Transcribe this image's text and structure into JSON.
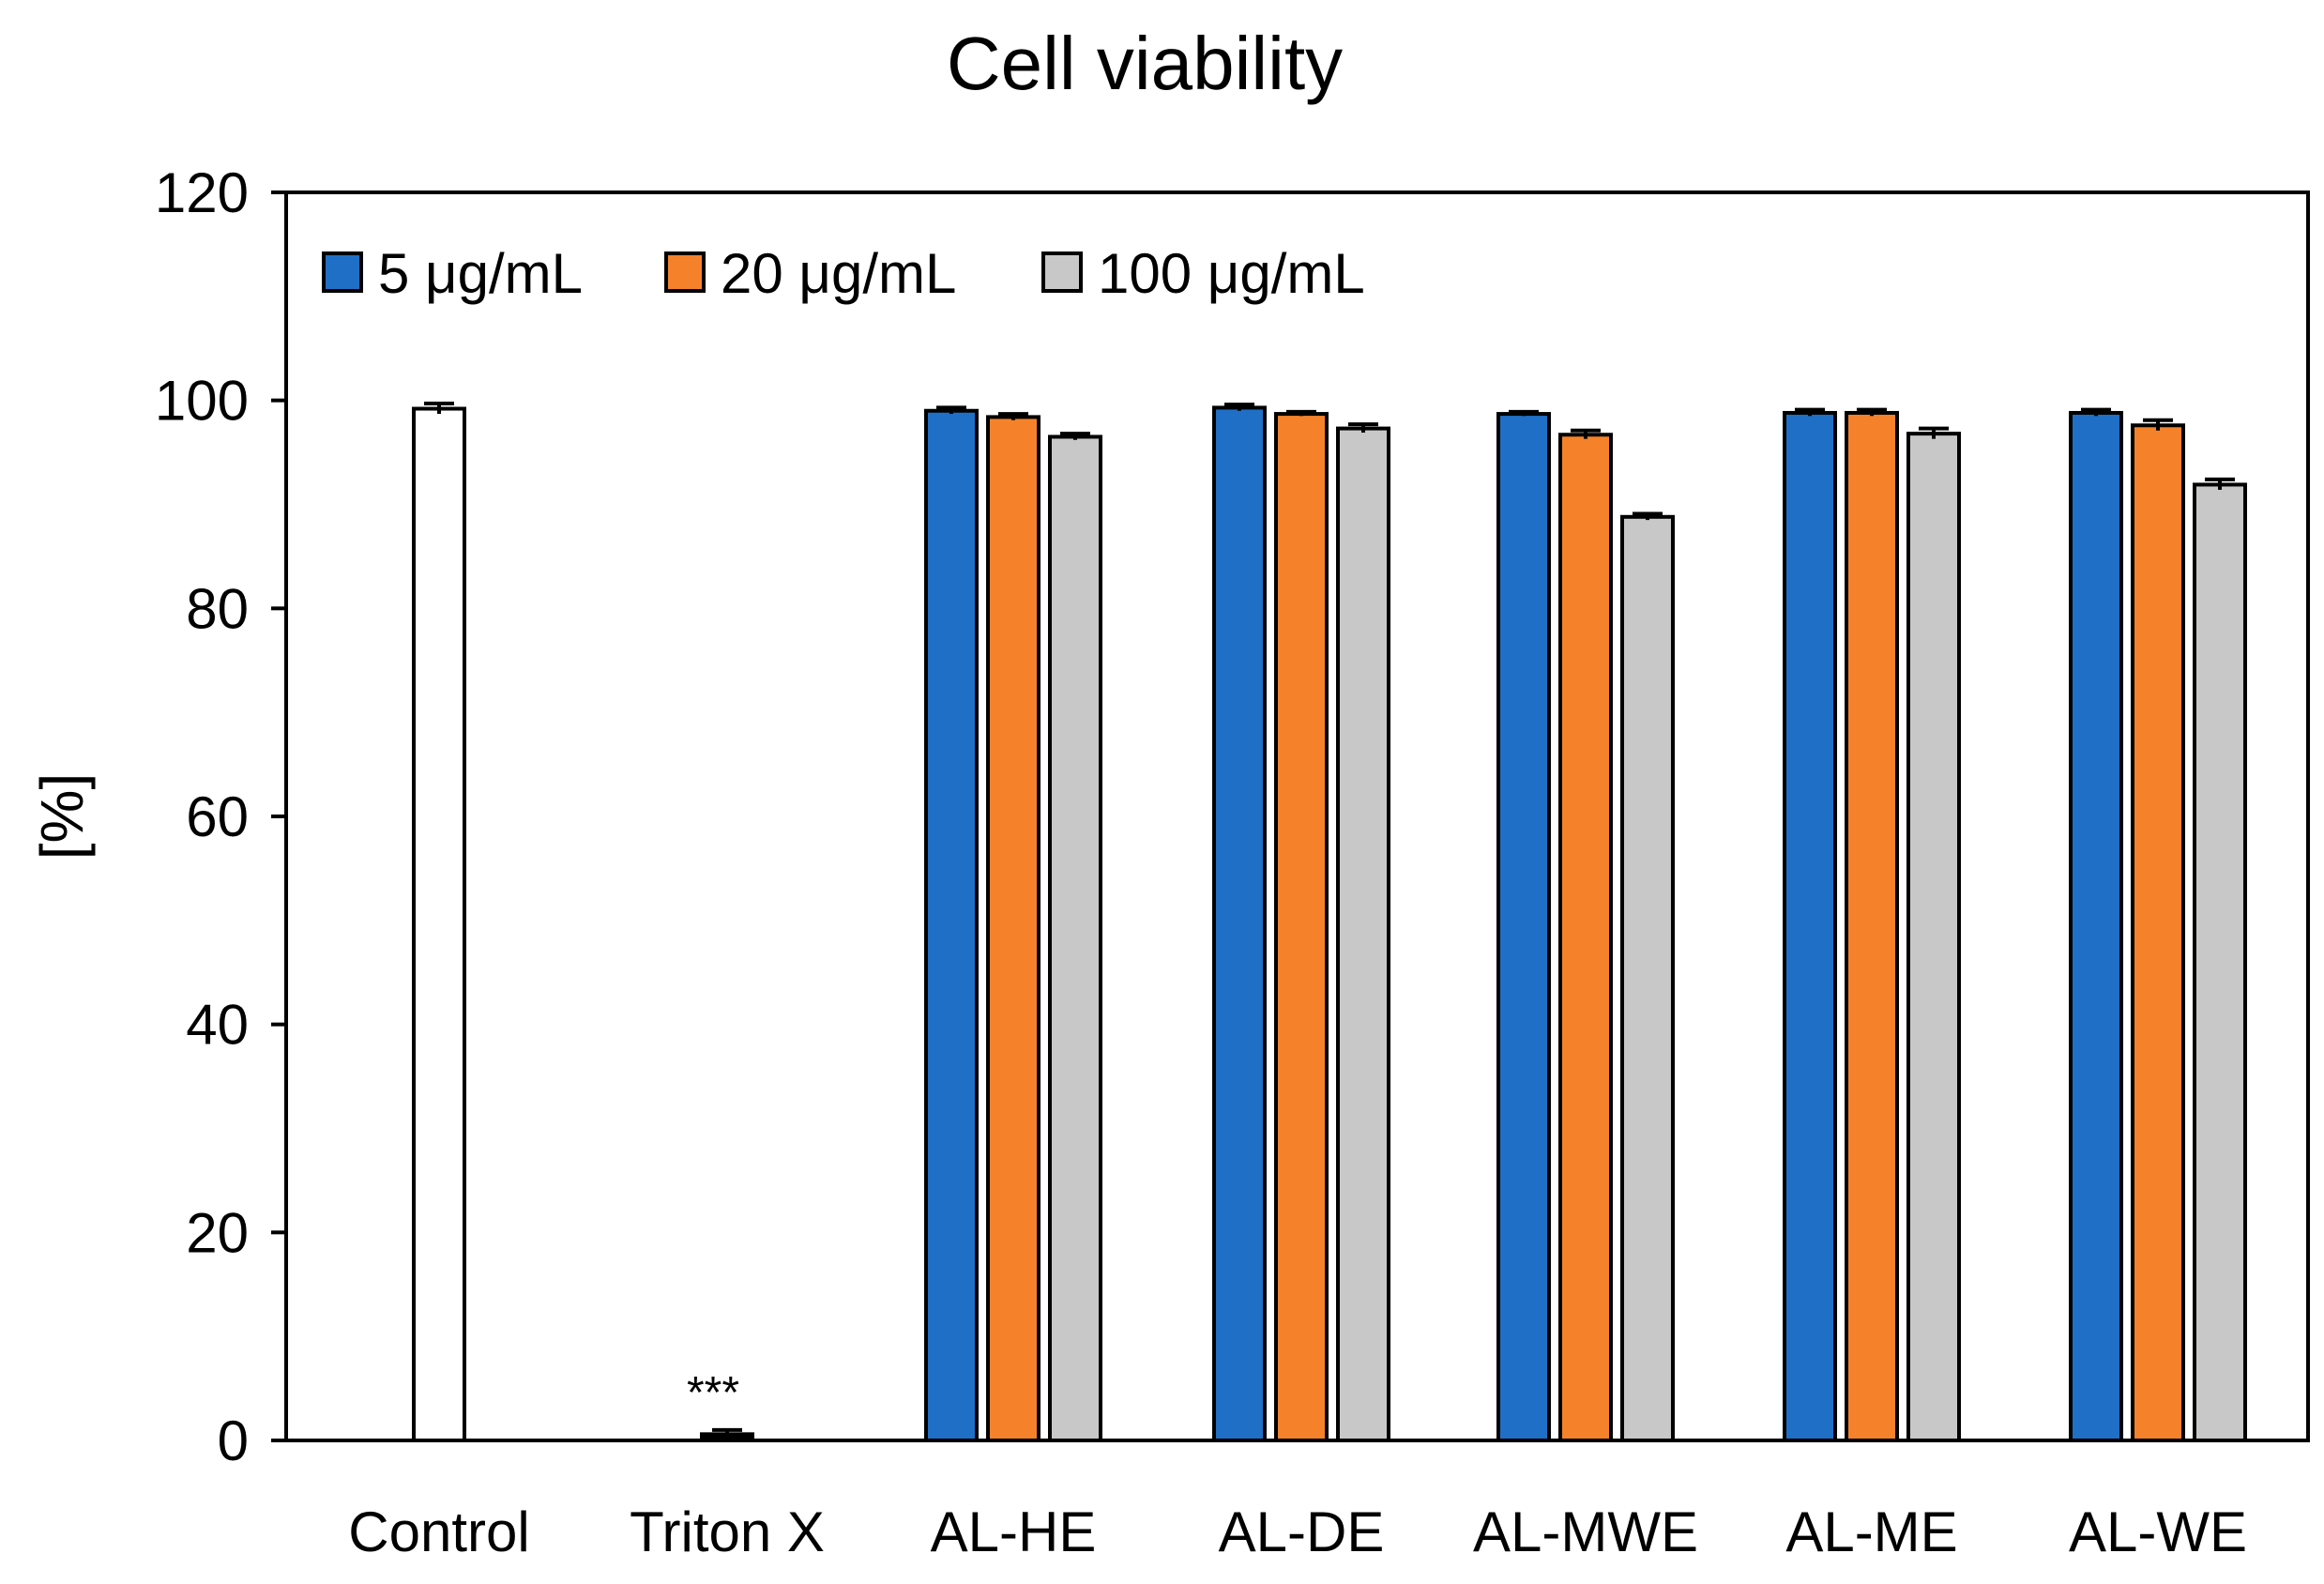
{
  "chart_data": {
    "type": "bar",
    "title": "Cell viability",
    "xlabel": "",
    "ylabel": "[%]",
    "ylim": [
      0,
      120
    ],
    "yticks": [
      0,
      20,
      40,
      60,
      80,
      100,
      120
    ],
    "categories": [
      "Control",
      "Triton X",
      "AL-HE",
      "AL-DE",
      "AL-MWE",
      "AL-ME",
      "AL-WE"
    ],
    "control": {
      "category": "Control",
      "value": 99.2,
      "error": 0.5,
      "color": "#ffffff"
    },
    "triton": {
      "category": "Triton X",
      "value": 0.6,
      "error": 0.4,
      "color": "#000000",
      "annotation": "***"
    },
    "series": [
      {
        "name": "5 μg/mL",
        "color": "#1f6fc6",
        "values": [
          null,
          null,
          99.0,
          99.3,
          98.7,
          98.8,
          98.8
        ],
        "errors": [
          null,
          null,
          0.3,
          0.3,
          0.2,
          0.3,
          0.3
        ]
      },
      {
        "name": "20 μg/mL",
        "color": "#f5822a",
        "values": [
          null,
          null,
          98.4,
          98.7,
          96.7,
          98.8,
          97.6
        ],
        "errors": [
          null,
          null,
          0.3,
          0.2,
          0.4,
          0.3,
          0.5
        ]
      },
      {
        "name": "100 μg/mL",
        "color": "#c8c8c8",
        "values": [
          null,
          null,
          96.5,
          97.3,
          88.8,
          96.8,
          91.9
        ],
        "errors": [
          null,
          null,
          0.3,
          0.4,
          0.3,
          0.5,
          0.5
        ]
      }
    ],
    "legend_position": "top-left",
    "grid": false
  }
}
